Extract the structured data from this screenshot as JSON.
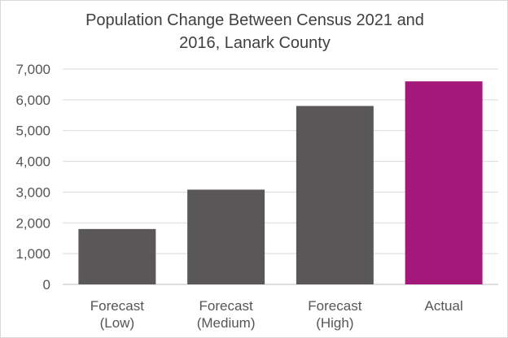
{
  "chart_data": {
    "type": "bar",
    "title": "Population Change Between Census 2021 and\n2016, Lanark County",
    "categories": [
      [
        "Forecast",
        "(Low)"
      ],
      [
        "Forecast",
        "(Medium)"
      ],
      [
        "Forecast",
        "(High)"
      ],
      [
        "Actual"
      ]
    ],
    "values": [
      1800,
      3080,
      5800,
      6600
    ],
    "colors": [
      "#595758",
      "#595758",
      "#595758",
      "#A4187A"
    ],
    "ylim": [
      0,
      7000
    ],
    "yticks": [
      "0",
      "1,000",
      "2,000",
      "3,000",
      "4,000",
      "5,000",
      "6,000",
      "7,000"
    ],
    "grid": true,
    "xlabel": "",
    "ylabel": ""
  }
}
